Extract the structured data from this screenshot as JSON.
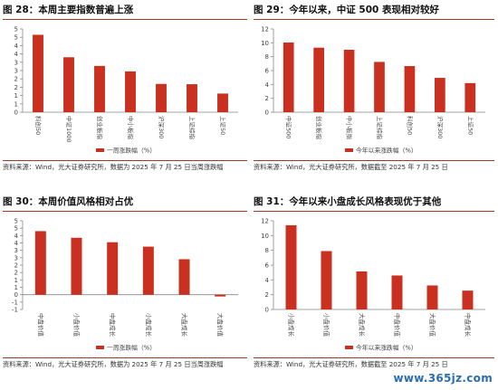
{
  "colors": {
    "bar": "#c9301f",
    "accent": "#9a3b2e"
  },
  "chart_data": [
    {
      "type": "bar",
      "title": "图 28：本周主要指数普遍上涨",
      "categories": [
        "科创50",
        "中证1000",
        "创业板指",
        "中小板指",
        "沪深300",
        "上证综指",
        "上证50"
      ],
      "values": [
        4.65,
        3.3,
        2.78,
        2.45,
        1.7,
        1.68,
        1.12
      ],
      "ylim": [
        0,
        5
      ],
      "yticks": [
        0,
        0.5,
        1,
        1.5,
        2,
        2.5,
        3,
        3.5,
        4,
        4.5,
        5
      ],
      "ytick_labels": [
        "0",
        "1",
        "1",
        "2",
        "2",
        "3",
        "3",
        "4",
        "4",
        "5",
        "5"
      ],
      "legend": "一周涨跌幅（%）",
      "source": "资料来源：Wind，光大证券研究所，数据为 2025 年 7 月 25 日当周涨跌幅"
    },
    {
      "type": "bar",
      "title": "图 29：今年以来，中证 500 表现相对较好",
      "categories": [
        "中证500",
        "创业板指",
        "中小板指",
        "上证综指",
        "科创50",
        "沪深300",
        "上证50"
      ],
      "values": [
        10.05,
        9.3,
        9.0,
        7.25,
        6.65,
        4.95,
        4.2
      ],
      "ylim": [
        0,
        12
      ],
      "yticks": [
        0,
        2,
        4,
        6,
        8,
        10,
        12
      ],
      "ytick_labels": [
        "0",
        "2",
        "4",
        "6",
        "8",
        "10",
        "12"
      ],
      "legend": "今年以来涨跌幅（%）",
      "source": "资料来源：Wind，光大证券研究所，数据截至 2025 年 7 月 25 日"
    },
    {
      "type": "bar",
      "title": "图 30：本周价值风格相对占优",
      "categories": [
        "中盘价值",
        "小盘价值",
        "中盘成长",
        "小盘成长",
        "大盘成长",
        "大盘价值"
      ],
      "values": [
        4.3,
        3.85,
        3.55,
        3.25,
        2.4,
        -0.12
      ],
      "ylim": [
        -1,
        5
      ],
      "yticks": [
        -1,
        -0.5,
        0,
        0.5,
        1,
        1.5,
        2,
        2.5,
        3,
        3.5,
        4,
        4.5,
        5
      ],
      "ytick_labels": [
        "-1",
        "-1",
        "0",
        "1",
        "1",
        "2",
        "2",
        "3",
        "3",
        "4",
        "4",
        "5",
        "5"
      ],
      "legend": "一周涨跌幅（%）",
      "source": "资料来源：Wind，光大证券研究所，数据为 2025 年 7 月 25 日当周涨跌幅"
    },
    {
      "type": "bar",
      "title": "图 31：今年以来小盘成长风格表现优于其他",
      "categories": [
        "小盘成长",
        "小盘价值",
        "大盘成长",
        "中盘价值",
        "大盘价值",
        "中盘成长"
      ],
      "values": [
        11.4,
        7.9,
        5.15,
        4.6,
        3.25,
        2.55
      ],
      "ylim": [
        0,
        12
      ],
      "yticks": [
        0,
        2,
        4,
        6,
        8,
        10,
        12
      ],
      "ytick_labels": [
        "0",
        "2",
        "4",
        "6",
        "8",
        "10",
        "12"
      ],
      "legend": "今年以来涨跌幅（%）",
      "source": "资料来源：Wind，光大证券研究所，数据截至 2025 年 7 月 25 日"
    }
  ],
  "watermark": "www.365jz.com"
}
